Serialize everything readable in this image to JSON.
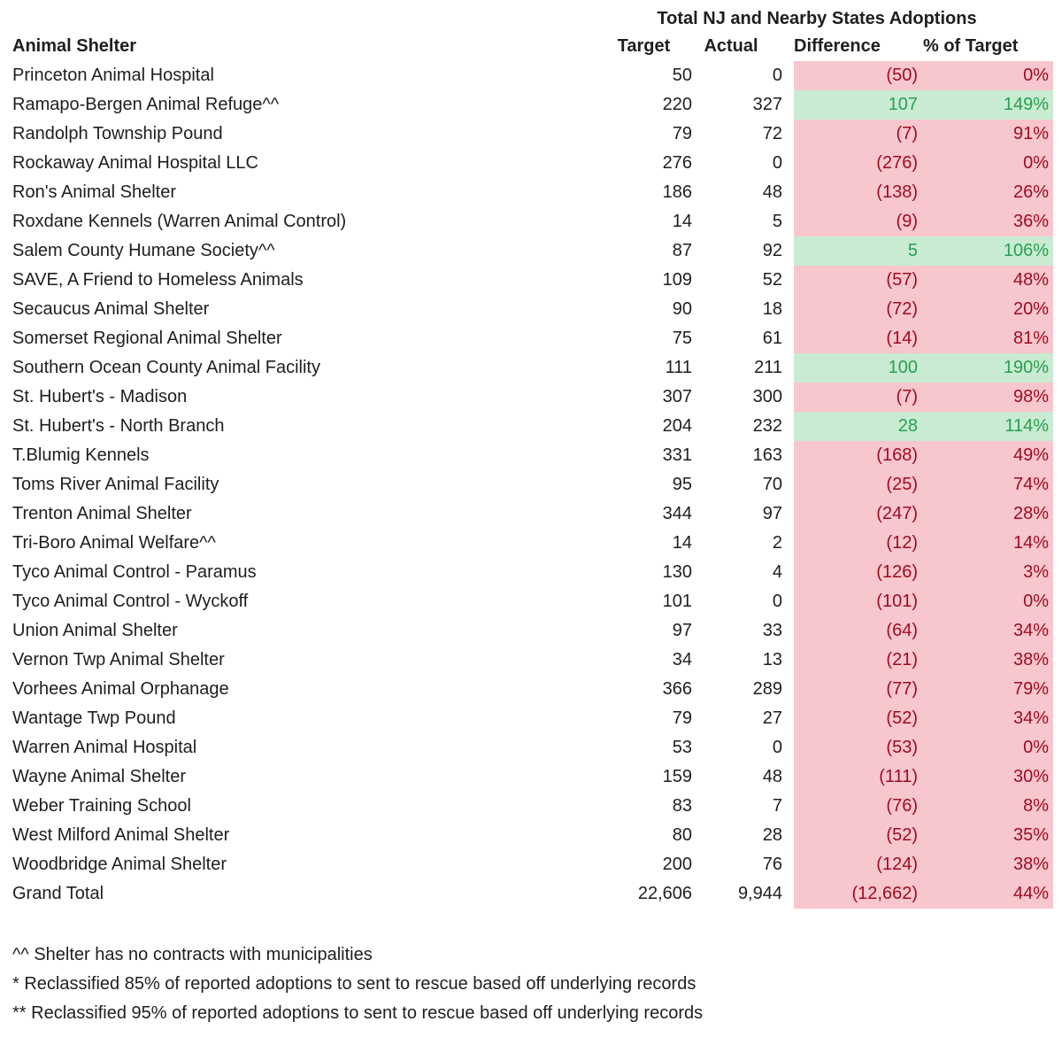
{
  "table": {
    "title": "Total NJ and Nearby States Adoptions",
    "columns": {
      "shelter": "Animal Shelter",
      "target": "Target",
      "actual": "Actual",
      "difference": "Difference",
      "pct": "% of Target"
    },
    "rows": [
      {
        "name": "Princeton Animal Hospital",
        "target": "50",
        "actual": "0",
        "difference": "(50)",
        "pct": "0%",
        "status": "bad"
      },
      {
        "name": "Ramapo-Bergen Animal Refuge^^",
        "target": "220",
        "actual": "327",
        "difference": "107",
        "pct": "149%",
        "status": "good"
      },
      {
        "name": "Randolph Township Pound",
        "target": "79",
        "actual": "72",
        "difference": "(7)",
        "pct": "91%",
        "status": "bad"
      },
      {
        "name": "Rockaway Animal Hospital LLC",
        "target": "276",
        "actual": "0",
        "difference": "(276)",
        "pct": "0%",
        "status": "bad"
      },
      {
        "name": "Ron's Animal Shelter",
        "target": "186",
        "actual": "48",
        "difference": "(138)",
        "pct": "26%",
        "status": "bad"
      },
      {
        "name": "Roxdane Kennels (Warren Animal Control)",
        "target": "14",
        "actual": "5",
        "difference": "(9)",
        "pct": "36%",
        "status": "bad"
      },
      {
        "name": "Salem County Humane Society^^",
        "target": "87",
        "actual": "92",
        "difference": "5",
        "pct": "106%",
        "status": "good"
      },
      {
        "name": "SAVE, A Friend to Homeless Animals",
        "target": "109",
        "actual": "52",
        "difference": "(57)",
        "pct": "48%",
        "status": "bad"
      },
      {
        "name": "Secaucus Animal Shelter",
        "target": "90",
        "actual": "18",
        "difference": "(72)",
        "pct": "20%",
        "status": "bad"
      },
      {
        "name": "Somerset Regional Animal Shelter",
        "target": "75",
        "actual": "61",
        "difference": "(14)",
        "pct": "81%",
        "status": "bad"
      },
      {
        "name": "Southern Ocean County Animal Facility",
        "target": "111",
        "actual": "211",
        "difference": "100",
        "pct": "190%",
        "status": "good"
      },
      {
        "name": "St. Hubert's - Madison",
        "target": "307",
        "actual": "300",
        "difference": "(7)",
        "pct": "98%",
        "status": "bad"
      },
      {
        "name": "St. Hubert's - North Branch",
        "target": "204",
        "actual": "232",
        "difference": "28",
        "pct": "114%",
        "status": "good"
      },
      {
        "name": "T.Blumig Kennels",
        "target": "331",
        "actual": "163",
        "difference": "(168)",
        "pct": "49%",
        "status": "bad"
      },
      {
        "name": "Toms River Animal Facility",
        "target": "95",
        "actual": "70",
        "difference": "(25)",
        "pct": "74%",
        "status": "bad"
      },
      {
        "name": "Trenton Animal Shelter",
        "target": "344",
        "actual": "97",
        "difference": "(247)",
        "pct": "28%",
        "status": "bad"
      },
      {
        "name": "Tri-Boro Animal Welfare^^",
        "target": "14",
        "actual": "2",
        "difference": "(12)",
        "pct": "14%",
        "status": "bad"
      },
      {
        "name": "Tyco Animal Control - Paramus",
        "target": "130",
        "actual": "4",
        "difference": "(126)",
        "pct": "3%",
        "status": "bad"
      },
      {
        "name": "Tyco Animal Control - Wyckoff",
        "target": "101",
        "actual": "0",
        "difference": "(101)",
        "pct": "0%",
        "status": "bad"
      },
      {
        "name": "Union Animal Shelter",
        "target": "97",
        "actual": "33",
        "difference": "(64)",
        "pct": "34%",
        "status": "bad"
      },
      {
        "name": "Vernon Twp Animal Shelter",
        "target": "34",
        "actual": "13",
        "difference": "(21)",
        "pct": "38%",
        "status": "bad"
      },
      {
        "name": "Vorhees Animal Orphanage",
        "target": "366",
        "actual": "289",
        "difference": "(77)",
        "pct": "79%",
        "status": "bad"
      },
      {
        "name": "Wantage Twp Pound",
        "target": "79",
        "actual": "27",
        "difference": "(52)",
        "pct": "34%",
        "status": "bad"
      },
      {
        "name": "Warren Animal Hospital",
        "target": "53",
        "actual": "0",
        "difference": "(53)",
        "pct": "0%",
        "status": "bad"
      },
      {
        "name": "Wayne Animal Shelter",
        "target": "159",
        "actual": "48",
        "difference": "(111)",
        "pct": "30%",
        "status": "bad"
      },
      {
        "name": "Weber Training School",
        "target": "83",
        "actual": "7",
        "difference": "(76)",
        "pct": "8%",
        "status": "bad"
      },
      {
        "name": "West Milford Animal Shelter",
        "target": "80",
        "actual": "28",
        "difference": "(52)",
        "pct": "35%",
        "status": "bad"
      },
      {
        "name": "Woodbridge Animal Shelter",
        "target": "200",
        "actual": "76",
        "difference": "(124)",
        "pct": "38%",
        "status": "bad"
      },
      {
        "name": "Grand Total",
        "target": "22,606",
        "actual": "9,944",
        "difference": "(12,662)",
        "pct": "44%",
        "status": "bad"
      }
    ]
  },
  "footnotes": [
    "^^ Shelter has no contracts with municipalities",
    "* Reclassified 85% of reported adoptions to sent to rescue based off underlying records",
    "** Reclassified 95% of reported adoptions to sent to rescue based off underlying records"
  ],
  "colors": {
    "bad_background": "#F8C6CD",
    "bad_text": "#9E0A1E",
    "good_background": "#C8EBD2",
    "good_text": "#28A050",
    "default_text": "#1E1E1E",
    "page_background": "#FFFFFF"
  },
  "chart_data": {
    "type": "table",
    "title": "Total NJ and Nearby States Adoptions",
    "columns": [
      "Animal Shelter",
      "Target",
      "Actual",
      "Difference",
      "% of Target"
    ],
    "rows": [
      [
        "Princeton Animal Hospital",
        50,
        0,
        -50,
        "0%"
      ],
      [
        "Ramapo-Bergen Animal Refuge^^",
        220,
        327,
        107,
        "149%"
      ],
      [
        "Randolph Township Pound",
        79,
        72,
        -7,
        "91%"
      ],
      [
        "Rockaway Animal Hospital LLC",
        276,
        0,
        -276,
        "0%"
      ],
      [
        "Ron's Animal Shelter",
        186,
        48,
        -138,
        "26%"
      ],
      [
        "Roxdane Kennels (Warren Animal Control)",
        14,
        5,
        -9,
        "36%"
      ],
      [
        "Salem County Humane Society^^",
        87,
        92,
        5,
        "106%"
      ],
      [
        "SAVE, A Friend to Homeless Animals",
        109,
        52,
        -57,
        "48%"
      ],
      [
        "Secaucus Animal Shelter",
        90,
        18,
        -72,
        "20%"
      ],
      [
        "Somerset Regional Animal Shelter",
        75,
        61,
        -14,
        "81%"
      ],
      [
        "Southern Ocean County Animal Facility",
        111,
        211,
        100,
        "190%"
      ],
      [
        "St. Hubert's - Madison",
        307,
        300,
        -7,
        "98%"
      ],
      [
        "St. Hubert's - North Branch",
        204,
        232,
        28,
        "114%"
      ],
      [
        "T.Blumig Kennels",
        331,
        163,
        -168,
        "49%"
      ],
      [
        "Toms River Animal Facility",
        95,
        70,
        -25,
        "74%"
      ],
      [
        "Trenton Animal Shelter",
        344,
        97,
        -247,
        "28%"
      ],
      [
        "Tri-Boro Animal Welfare^^",
        14,
        2,
        -12,
        "14%"
      ],
      [
        "Tyco Animal Control - Paramus",
        130,
        4,
        -126,
        "3%"
      ],
      [
        "Tyco Animal Control - Wyckoff",
        101,
        0,
        -101,
        "0%"
      ],
      [
        "Union Animal Shelter",
        97,
        33,
        -64,
        "34%"
      ],
      [
        "Vernon Twp Animal Shelter",
        34,
        13,
        -21,
        "38%"
      ],
      [
        "Vorhees Animal Orphanage",
        366,
        289,
        -77,
        "79%"
      ],
      [
        "Wantage Twp Pound",
        79,
        27,
        -52,
        "34%"
      ],
      [
        "Warren Animal Hospital",
        53,
        0,
        -53,
        "0%"
      ],
      [
        "Wayne Animal Shelter",
        159,
        48,
        -111,
        "30%"
      ],
      [
        "Weber Training School",
        83,
        7,
        -76,
        "8%"
      ],
      [
        "West Milford Animal Shelter",
        80,
        28,
        -52,
        "35%"
      ],
      [
        "Woodbridge Animal Shelter",
        200,
        76,
        -124,
        "38%"
      ],
      [
        "Grand Total",
        22606,
        9944,
        -12662,
        "44%"
      ]
    ],
    "legend_position": "none",
    "grid": false,
    "notes": "Rows where Actual >= Target have green Difference and % of Target cells; shortfall rows are red/pink",
    "footnotes": [
      "^^ Shelter has no contracts with municipalities",
      "* Reclassified 85% of reported adoptions to sent to rescue based off underlying records",
      "** Reclassified 95% of reported adoptions to sent to rescue based off underlying records"
    ]
  }
}
